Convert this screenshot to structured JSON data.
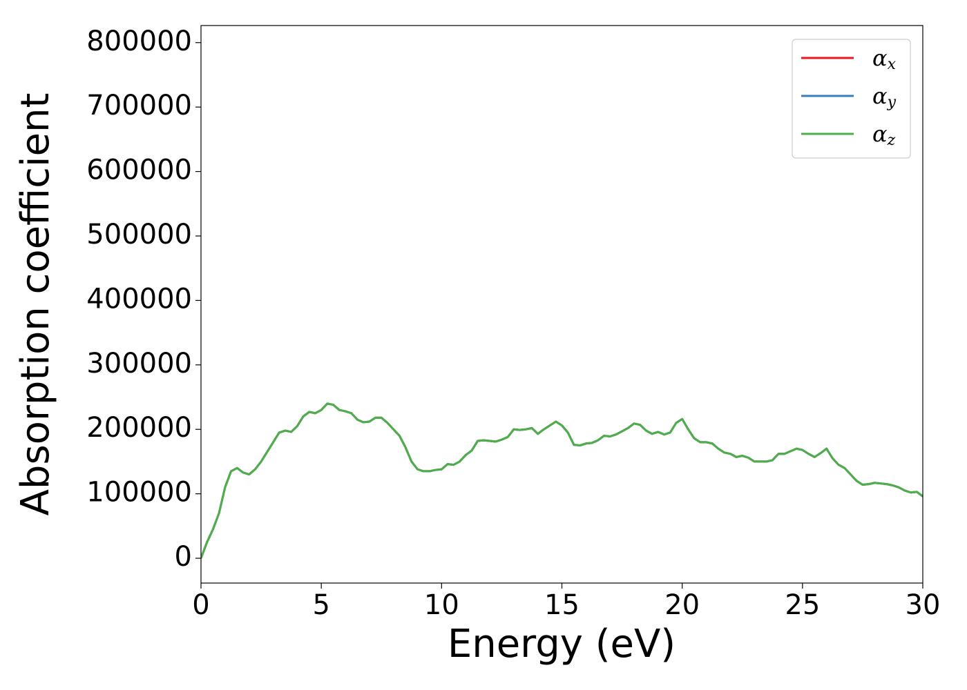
{
  "chart_data": {
    "type": "line",
    "xlabel": "Energy (eV)",
    "ylabel": "Absorption coefficient",
    "xlim": [
      0,
      30
    ],
    "xticks": [
      0,
      5,
      10,
      15,
      20,
      25,
      30
    ],
    "ylim": [
      -38500,
      826500
    ],
    "yticks": [
      0,
      100000,
      200000,
      300000,
      400000,
      500000,
      600000,
      700000,
      800000
    ],
    "legend": "upper right",
    "grid": false,
    "x": [
      0,
      0.25,
      0.5,
      0.75,
      1,
      1.25,
      1.5,
      1.75,
      2,
      2.25,
      2.5,
      2.75,
      3,
      3.25,
      3.5,
      3.75,
      4,
      4.25,
      4.5,
      4.75,
      5,
      5.25,
      5.5,
      5.75,
      6,
      6.25,
      6.5,
      6.75,
      7,
      7.25,
      7.5,
      7.75,
      8,
      8.25,
      8.5,
      8.75,
      9,
      9.25,
      9.5,
      9.75,
      10,
      10.25,
      10.5,
      10.75,
      11,
      11.25,
      11.5,
      11.75,
      12,
      12.25,
      12.5,
      12.75,
      13,
      13.25,
      13.5,
      13.75,
      14,
      14.25,
      14.5,
      14.75,
      15,
      15.25,
      15.5,
      15.75,
      16,
      16.25,
      16.5,
      16.75,
      17,
      17.25,
      17.5,
      17.75,
      18,
      18.25,
      18.5,
      18.75,
      19,
      19.25,
      19.5,
      19.75,
      20,
      20.25,
      20.5,
      20.75,
      21,
      21.25,
      21.5,
      21.75,
      22,
      22.25,
      22.5,
      22.75,
      23,
      23.25,
      23.5,
      23.75,
      24,
      24.25,
      24.5,
      24.75,
      25,
      25.25,
      25.5,
      25.75,
      26,
      26.25,
      26.5,
      26.75,
      27,
      27.25,
      27.5,
      27.75,
      28,
      28.25,
      28.5,
      28.75,
      29,
      29.25,
      29.5,
      29.75,
      30
    ],
    "series": [
      {
        "name": "αx",
        "color": "#e41a1c",
        "values": [
          0,
          25000,
          45000,
          70000,
          110000,
          135000,
          140000,
          133000,
          130000,
          138000,
          150000,
          165000,
          180000,
          195000,
          198000,
          196000,
          205000,
          220000,
          227000,
          225000,
          230000,
          240000,
          238000,
          230000,
          228000,
          225000,
          215000,
          211000,
          212000,
          218000,
          218000,
          210000,
          200000,
          190000,
          172000,
          150000,
          138000,
          135000,
          135000,
          137000,
          138000,
          146000,
          145000,
          150000,
          160000,
          167000,
          182000,
          183000,
          182000,
          181000,
          184000,
          188000,
          200000,
          199000,
          200000,
          202000,
          193000,
          200000,
          206000,
          212000,
          206000,
          195000,
          176000,
          175000,
          178000,
          179000,
          183000,
          190000,
          189000,
          192000,
          197000,
          202000,
          209000,
          207000,
          198000,
          193000,
          196000,
          192000,
          195000,
          210000,
          216000,
          200000,
          186000,
          180000,
          180000,
          178000,
          170000,
          164000,
          162000,
          157000,
          159000,
          156000,
          150000,
          150000,
          150000,
          152000,
          162000,
          162000,
          166000,
          170000,
          168000,
          162000,
          157000,
          163000,
          170000,
          155000,
          145000,
          140000,
          130000,
          120000,
          114000,
          115000,
          117000,
          116000,
          115000,
          113000,
          110000,
          105000,
          102000,
          103000,
          96000
        ]
      },
      {
        "name": "αy",
        "color": "#377eb8",
        "values": [
          0,
          25000,
          45000,
          70000,
          110000,
          135000,
          140000,
          133000,
          130000,
          138000,
          150000,
          165000,
          180000,
          195000,
          198000,
          196000,
          205000,
          220000,
          227000,
          225000,
          230000,
          240000,
          238000,
          230000,
          228000,
          225000,
          215000,
          211000,
          212000,
          218000,
          218000,
          210000,
          200000,
          190000,
          172000,
          150000,
          138000,
          135000,
          135000,
          137000,
          138000,
          146000,
          145000,
          150000,
          160000,
          167000,
          182000,
          183000,
          182000,
          181000,
          184000,
          188000,
          200000,
          199000,
          200000,
          202000,
          193000,
          200000,
          206000,
          212000,
          206000,
          195000,
          176000,
          175000,
          178000,
          179000,
          183000,
          190000,
          189000,
          192000,
          197000,
          202000,
          209000,
          207000,
          198000,
          193000,
          196000,
          192000,
          195000,
          210000,
          216000,
          200000,
          186000,
          180000,
          180000,
          178000,
          170000,
          164000,
          162000,
          157000,
          159000,
          156000,
          150000,
          150000,
          150000,
          152000,
          162000,
          162000,
          166000,
          170000,
          168000,
          162000,
          157000,
          163000,
          170000,
          155000,
          145000,
          140000,
          130000,
          120000,
          114000,
          115000,
          117000,
          116000,
          115000,
          113000,
          110000,
          105000,
          102000,
          103000,
          96000
        ]
      },
      {
        "name": "αz",
        "color": "#4daf4a",
        "values": [
          0,
          25000,
          45000,
          70000,
          110000,
          135000,
          140000,
          133000,
          130000,
          138000,
          150000,
          165000,
          180000,
          195000,
          198000,
          196000,
          205000,
          220000,
          227000,
          225000,
          230000,
          240000,
          238000,
          230000,
          228000,
          225000,
          215000,
          211000,
          212000,
          218000,
          218000,
          210000,
          200000,
          190000,
          172000,
          150000,
          138000,
          135000,
          135000,
          137000,
          138000,
          146000,
          145000,
          150000,
          160000,
          167000,
          182000,
          183000,
          182000,
          181000,
          184000,
          188000,
          200000,
          199000,
          200000,
          202000,
          193000,
          200000,
          206000,
          212000,
          206000,
          195000,
          176000,
          175000,
          178000,
          179000,
          183000,
          190000,
          189000,
          192000,
          197000,
          202000,
          209000,
          207000,
          198000,
          193000,
          196000,
          192000,
          195000,
          210000,
          216000,
          200000,
          186000,
          180000,
          180000,
          178000,
          170000,
          164000,
          162000,
          157000,
          159000,
          156000,
          150000,
          150000,
          150000,
          152000,
          162000,
          162000,
          166000,
          170000,
          168000,
          162000,
          157000,
          163000,
          170000,
          155000,
          145000,
          140000,
          130000,
          120000,
          114000,
          115000,
          117000,
          116000,
          115000,
          113000,
          110000,
          105000,
          102000,
          103000,
          96000
        ]
      }
    ]
  }
}
